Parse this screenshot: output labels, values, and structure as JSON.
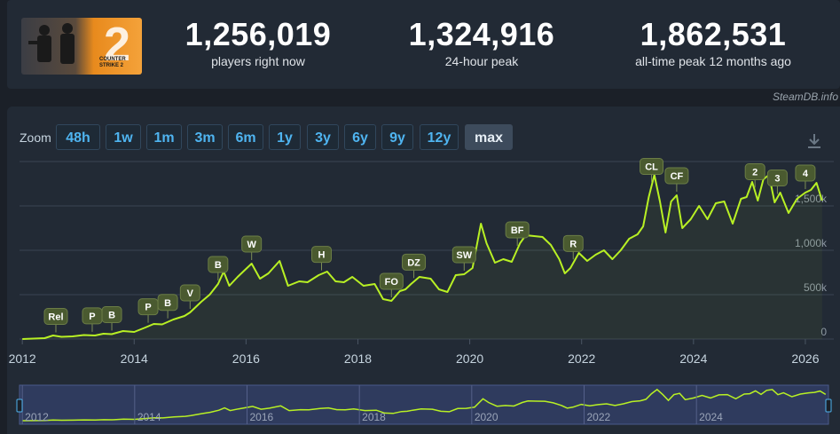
{
  "game_logo_text": "COUNTER STRIKE 2",
  "stats": [
    {
      "value": "1,256,019",
      "label": "players right now"
    },
    {
      "value": "1,324,916",
      "label": "24-hour peak"
    },
    {
      "value": "1,862,531",
      "label": "all-time peak 12 months ago"
    }
  ],
  "attribution": "SteamDB.info",
  "zoom": {
    "label": "Zoom",
    "options": [
      "48h",
      "1w",
      "1m",
      "3m",
      "6m",
      "1y",
      "3y",
      "6y",
      "9y",
      "12y",
      "max"
    ],
    "active": "max"
  },
  "icons": {
    "download": "download-icon",
    "navigator_handle": "range-handle-icon"
  },
  "colors": {
    "line": "#b8f024",
    "flag_bg": "#4a5a30",
    "flag_text": "#ffffff",
    "grid": "#3a4452",
    "navigator_fill": "#3a4880"
  },
  "chart_data": {
    "type": "line",
    "x_unit": "year",
    "xlim": [
      2011.95,
      2026.35
    ],
    "ylim": [
      0,
      2000000
    ],
    "y_ticks": [
      "0",
      "500k",
      "1,000k",
      "1,500k"
    ],
    "y_tick_values": [
      0,
      500000,
      1000000,
      1500000
    ],
    "x_ticks": [
      "2012",
      "2014",
      "2016",
      "2018",
      "2020",
      "2022",
      "2024",
      "2026"
    ],
    "x_tick_values": [
      2012,
      2014,
      2016,
      2018,
      2020,
      2022,
      2024,
      2026
    ],
    "navigator_x_ticks": [
      "2012",
      "2014",
      "2016",
      "2018",
      "2020",
      "2022",
      "2024"
    ],
    "grid": true,
    "series": [
      {
        "x": [
          2012.0,
          2012.4,
          2012.55,
          2012.7,
          2012.9,
          2013.1,
          2013.3,
          2013.45,
          2013.6,
          2013.8,
          2014.0,
          2014.2,
          2014.35,
          2014.5,
          2014.7,
          2014.9,
          2015.0,
          2015.2,
          2015.35,
          2015.5,
          2015.6,
          2015.7,
          2015.85,
          2015.95,
          2016.1,
          2016.25,
          2016.4,
          2016.6,
          2016.75,
          2016.95,
          2017.1,
          2017.3,
          2017.45,
          2017.6,
          2017.75,
          2017.9,
          2018.1,
          2018.3,
          2018.45,
          2018.6,
          2018.75,
          2018.85,
          2018.95,
          2019.1,
          2019.3,
          2019.45,
          2019.6,
          2019.75,
          2019.9,
          2020.05,
          2020.2,
          2020.3,
          2020.45,
          2020.6,
          2020.75,
          2020.9,
          2021.0,
          2021.15,
          2021.3,
          2021.45,
          2021.6,
          2021.7,
          2021.8,
          2021.95,
          2022.1,
          2022.25,
          2022.4,
          2022.55,
          2022.7,
          2022.85,
          2023.0,
          2023.1,
          2023.2,
          2023.3,
          2023.4,
          2023.5,
          2023.6,
          2023.7,
          2023.8,
          2023.95,
          2024.1,
          2024.25,
          2024.4,
          2024.55,
          2024.7,
          2024.85,
          2024.95,
          2025.05,
          2025.15,
          2025.25,
          2025.35,
          2025.45,
          2025.55,
          2025.7,
          2025.85,
          2026.0,
          2026.1,
          2026.2,
          2026.3
        ],
        "y": [
          0,
          10000,
          40000,
          25000,
          30000,
          45000,
          40000,
          60000,
          55000,
          90000,
          80000,
          130000,
          170000,
          165000,
          220000,
          260000,
          300000,
          420000,
          500000,
          620000,
          760000,
          600000,
          700000,
          760000,
          850000,
          680000,
          740000,
          880000,
          600000,
          650000,
          640000,
          720000,
          760000,
          650000,
          640000,
          700000,
          600000,
          620000,
          450000,
          430000,
          540000,
          560000,
          620000,
          700000,
          680000,
          560000,
          530000,
          720000,
          730000,
          800000,
          1300000,
          1080000,
          860000,
          900000,
          870000,
          1080000,
          1170000,
          1160000,
          1150000,
          1060000,
          900000,
          740000,
          800000,
          970000,
          880000,
          950000,
          1000000,
          900000,
          1000000,
          1130000,
          1180000,
          1270000,
          1600000,
          1850000,
          1550000,
          1200000,
          1550000,
          1620000,
          1250000,
          1350000,
          1500000,
          1350000,
          1530000,
          1550000,
          1300000,
          1580000,
          1600000,
          1770000,
          1560000,
          1800000,
          1850000,
          1540000,
          1650000,
          1420000,
          1580000,
          1650000,
          1680000,
          1760000,
          1560000
        ]
      }
    ],
    "annotations": [
      {
        "text": "Rel",
        "x": 2012.6
      },
      {
        "text": "P",
        "x": 2013.25
      },
      {
        "text": "B",
        "x": 2013.6
      },
      {
        "text": "P",
        "x": 2014.25
      },
      {
        "text": "B",
        "x": 2014.6
      },
      {
        "text": "V",
        "x": 2015.0
      },
      {
        "text": "B",
        "x": 2015.5
      },
      {
        "text": "W",
        "x": 2016.1
      },
      {
        "text": "H",
        "x": 2017.35
      },
      {
        "text": "FO",
        "x": 2018.6
      },
      {
        "text": "DZ",
        "x": 2019.0
      },
      {
        "text": "SW",
        "x": 2019.9
      },
      {
        "text": "BF",
        "x": 2020.85
      },
      {
        "text": "R",
        "x": 2021.85
      },
      {
        "text": "CL",
        "x": 2023.25
      },
      {
        "text": "CF",
        "x": 2023.7
      },
      {
        "text": "2",
        "x": 2025.1
      },
      {
        "text": "3",
        "x": 2025.5
      },
      {
        "text": "4",
        "x": 2026.0
      }
    ]
  }
}
